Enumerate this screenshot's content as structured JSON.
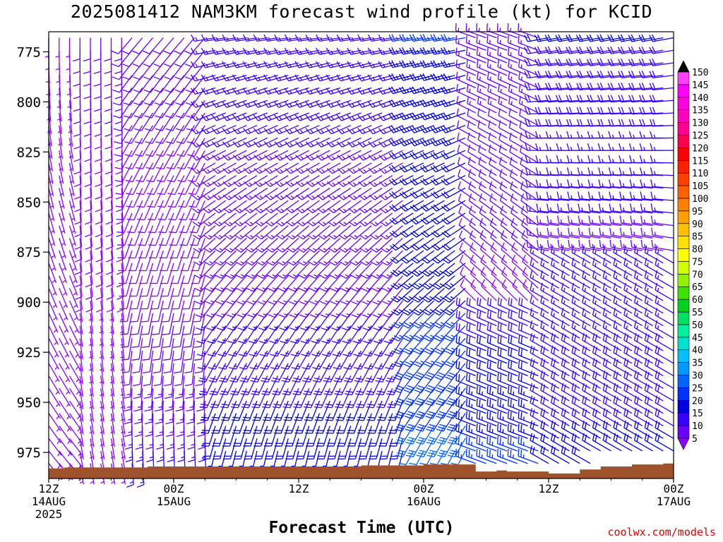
{
  "chart_title": "2025081412 NAM3KM forecast wind profile (kt) for KCID",
  "xlabel": "Forecast Time (UTC)",
  "credit": "coolwx.com/models",
  "chart_data": {
    "type": "wind-barb-time-height",
    "title": "2025081412 NAM3KM forecast wind profile (kt) for KCID",
    "xlabel": "Forecast Time (UTC)",
    "ylabel": "",
    "y_axis": {
      "ticks": [
        775,
        800,
        825,
        850,
        875,
        900,
        925,
        950,
        975
      ],
      "range": [
        765,
        988
      ],
      "inverted": true
    },
    "x_axis": {
      "range_hours": [
        0,
        60
      ],
      "ticks": [
        {
          "hour": 0,
          "labels": [
            "12Z",
            "14AUG",
            "2025"
          ]
        },
        {
          "hour": 12,
          "labels": [
            "00Z",
            "15AUG"
          ]
        },
        {
          "hour": 24,
          "labels": [
            "12Z"
          ]
        },
        {
          "hour": 36,
          "labels": [
            "00Z",
            "16AUG"
          ]
        },
        {
          "hour": 48,
          "labels": [
            "12Z"
          ]
        },
        {
          "hour": 60,
          "labels": [
            "00Z",
            "17AUG"
          ]
        }
      ]
    },
    "colorbar": {
      "levels": [
        5,
        10,
        15,
        20,
        25,
        30,
        35,
        40,
        45,
        50,
        55,
        60,
        65,
        70,
        75,
        80,
        85,
        90,
        95,
        100,
        105,
        110,
        115,
        120,
        125,
        130,
        135,
        140,
        145,
        150
      ],
      "colors": [
        "#8b00ff",
        "#6a00ff",
        "#3a00ff",
        "#0000e0",
        "#0033ff",
        "#0066ff",
        "#0099ff",
        "#00c0ff",
        "#00e0d0",
        "#00f0a0",
        "#00e060",
        "#00d020",
        "#40e000",
        "#90f000",
        "#d0ff00",
        "#ffff00",
        "#ffe000",
        "#ffc000",
        "#ffa000",
        "#ff8000",
        "#ff6000",
        "#ff4000",
        "#ff2000",
        "#ff0000",
        "#ff0050",
        "#ff0090",
        "#ff00c0",
        "#ff00e0",
        "#ff00ff",
        "#ff40ff"
      ],
      "over_color": "#000000",
      "under_color": "#8b00ff"
    },
    "surface_pressure_hpa": [
      {
        "hour": 0,
        "p": 983
      },
      {
        "hour": 1.5,
        "p": 982.5
      },
      {
        "hour": 9.5,
        "p": 982
      },
      {
        "hour": 28,
        "p": 982
      },
      {
        "hour": 30,
        "p": 981.5
      },
      {
        "hour": 36,
        "p": 981
      },
      {
        "hour": 38.5,
        "p": 981
      },
      {
        "hour": 41,
        "p": 984.5
      },
      {
        "hour": 43,
        "p": 984
      },
      {
        "hour": 44,
        "p": 984.5
      },
      {
        "hour": 48,
        "p": 985.5
      },
      {
        "hour": 51,
        "p": 983.5
      },
      {
        "hour": 53,
        "p": 982
      },
      {
        "hour": 56,
        "p": 981
      },
      {
        "hour": 59,
        "p": 980.5
      },
      {
        "hour": 60,
        "p": 980.5
      }
    ],
    "surface_color": "#a0522d",
    "barb_color_by_speed": true,
    "wind_field_description": "Barbs every 1 h, every ~6.25 hPa; speed and direction estimated from the figure."
  }
}
